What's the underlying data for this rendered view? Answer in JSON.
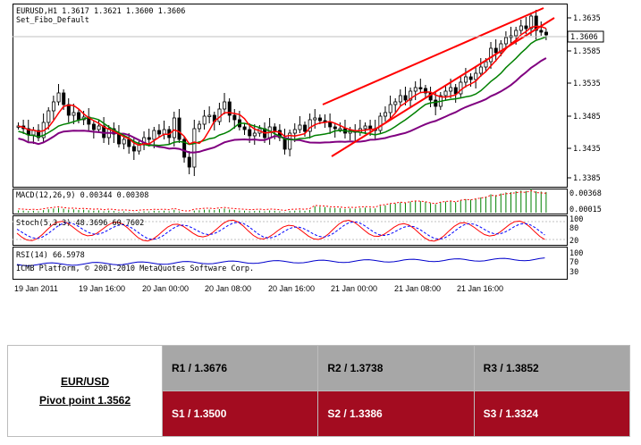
{
  "chart": {
    "header_line1": "EURUSD,H1  1.3617 1.3621 1.3600 1.3606",
    "header_line2": "Set_Fibo_Default",
    "current_price": "1.3606",
    "price_ticks": [
      "1.3635",
      "1.3585",
      "1.3535",
      "1.3485",
      "1.3435",
      "1.3385"
    ],
    "time_ticks": [
      "19 Jan 2011",
      "19 Jan 16:00",
      "20 Jan 00:00",
      "20 Jan 08:00",
      "20 Jan 16:00",
      "21 Jan 00:00",
      "21 Jan 08:00",
      "21 Jan 16:00"
    ],
    "macd_label": "MACD(12,26,9) 0.00344 0.00308",
    "macd_ticks": [
      "0.00368",
      "0.00015"
    ],
    "stoch_label": "Stoch(5,3,3) 48.3696 60.7602",
    "stoch_ticks": [
      "100",
      "80",
      "20"
    ],
    "rsi_label": "RSI(14) 66.5978",
    "rsi_ticks": [
      "100",
      "70",
      "30"
    ],
    "copyright": "ICMB Platform, © 2001-2010 MetaQuotes Software Corp.",
    "colors": {
      "bull": "#000000",
      "bear": "#000000",
      "ma_fast": "#ff0000",
      "ma_mid": "#008000",
      "ma_slow": "#800080",
      "channel": "#ff0000"
    }
  },
  "table": {
    "pair": "EUR/USD",
    "pivot": "Pivot point 1.3562",
    "resistance": [
      "R1 / 1.3676",
      "R2 / 1.3738",
      "R3 / 1.3852"
    ],
    "support": [
      "S1 / 1.3500",
      "S2 / 1.3386",
      "S3 / 1.3324"
    ],
    "colors": {
      "resistance_bg": "#a7a7a7",
      "support_bg": "#a30c20",
      "support_text": "#ffffff"
    }
  }
}
